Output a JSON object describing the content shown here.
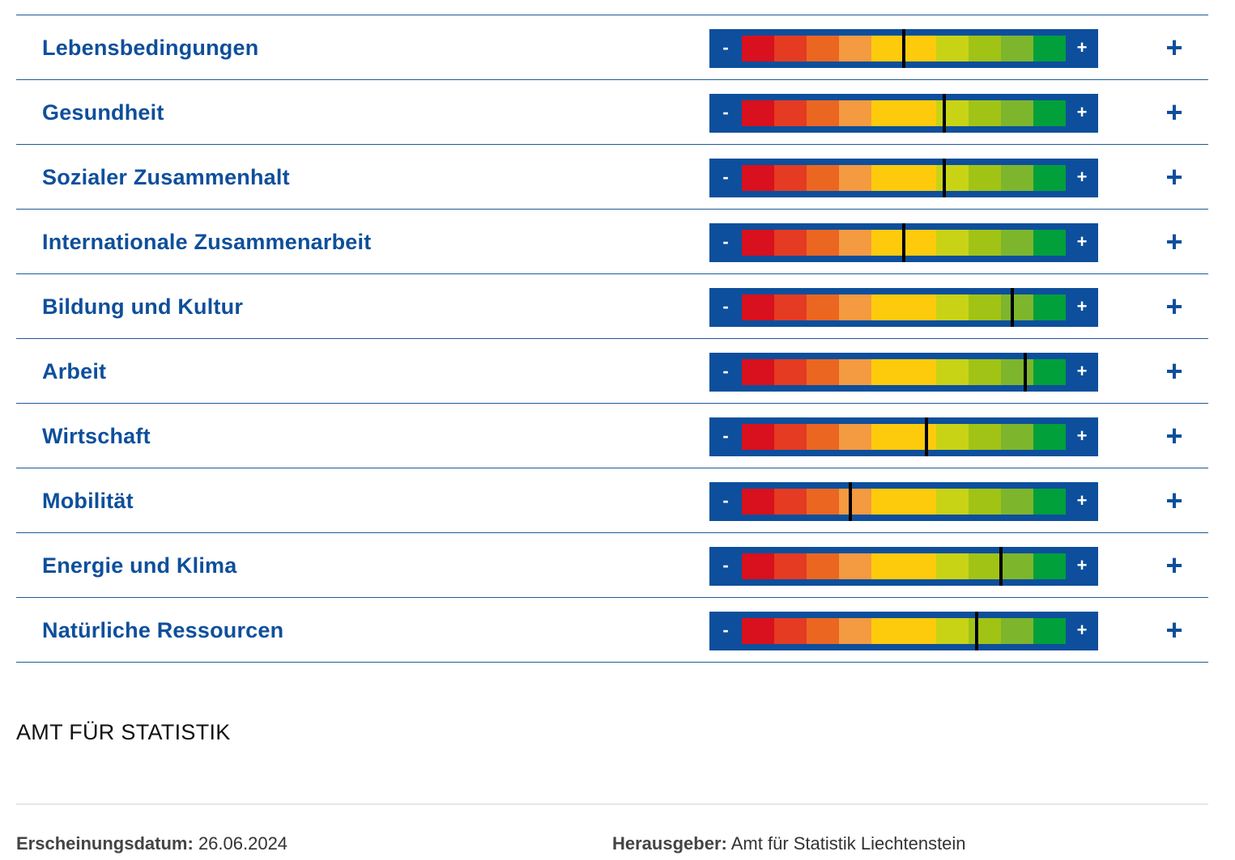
{
  "scale_colors": [
    "#d9101d",
    "#e43b22",
    "#eb6621",
    "#f49a40",
    "#fdcb0b",
    "#fdcb0b",
    "#c8d315",
    "#a1c316",
    "#7db62c",
    "#02a03b"
  ],
  "gauge_labels": {
    "minus": "-",
    "plus": "+"
  },
  "expand_icon": "+",
  "indicators": [
    {
      "label": "Lebensbedingungen",
      "value": 0.5
    },
    {
      "label": "Gesundheit",
      "value": 0.625
    },
    {
      "label": "Sozialer Zusammenhalt",
      "value": 0.625
    },
    {
      "label": "Internationale Zusammenarbeit",
      "value": 0.5
    },
    {
      "label": "Bildung und Kultur",
      "value": 0.835
    },
    {
      "label": "Arbeit",
      "value": 0.875
    },
    {
      "label": "Wirtschaft",
      "value": 0.57
    },
    {
      "label": "Mobilität",
      "value": 0.335
    },
    {
      "label": "Energie und Klima",
      "value": 0.8
    },
    {
      "label": "Natürliche Ressourcen",
      "value": 0.725
    }
  ],
  "brand": "AMT FÜR STATISTIK",
  "footer": {
    "date_label": "Erscheinungsdatum:",
    "date_value": "26.06.2024",
    "publisher_label": "Herausgeber:",
    "publisher_value": "Amt für Statistik Liechtenstein"
  }
}
